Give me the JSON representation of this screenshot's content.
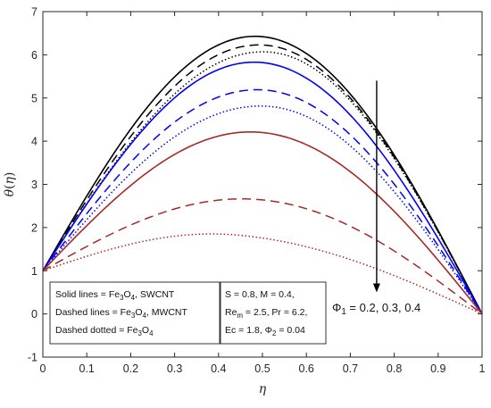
{
  "chart_data": {
    "type": "line",
    "xlabel": "η",
    "ylabel_parts": [
      "θ",
      "(",
      "η",
      ")"
    ],
    "xlim": [
      0,
      1
    ],
    "ylim": [
      -1,
      7
    ],
    "xticks": [
      0,
      0.1,
      0.2,
      0.3,
      0.4,
      0.5,
      0.6,
      0.7,
      0.8,
      0.9,
      1
    ],
    "xtick_labels": [
      "0",
      "0.1",
      "0.2",
      "0.3",
      "0.4",
      "0.5",
      "0.6",
      "0.7",
      "0.8",
      "0.9",
      "1"
    ],
    "yticks": [
      -1,
      0,
      1,
      2,
      3,
      4,
      5,
      6,
      7
    ],
    "ytick_labels": [
      "-1",
      "0",
      "1",
      "2",
      "3",
      "4",
      "5",
      "6",
      "7"
    ],
    "grid": false,
    "series": [
      {
        "color": "#000000",
        "style": "solid",
        "ends": [
          1.0,
          0.0
        ],
        "peak_x": 0.5,
        "peak_y": 6.42
      },
      {
        "color": "#000000",
        "style": "dashed",
        "ends": [
          1.0,
          0.0
        ],
        "peak_x": 0.51,
        "peak_y": 6.22
      },
      {
        "color": "#000000",
        "style": "dotted",
        "ends": [
          1.0,
          0.0
        ],
        "peak_x": 0.52,
        "peak_y": 6.06
      },
      {
        "color": "#0000ff",
        "style": "solid",
        "ends": [
          1.0,
          0.0
        ],
        "peak_x": 0.5,
        "peak_y": 5.82
      },
      {
        "color": "#0000ff",
        "style": "dashed",
        "ends": [
          1.0,
          0.0
        ],
        "peak_x": 0.51,
        "peak_y": 5.18
      },
      {
        "color": "#0000ff",
        "style": "dotted",
        "ends": [
          1.0,
          0.0
        ],
        "peak_x": 0.52,
        "peak_y": 4.8
      },
      {
        "color": "#a52a2a",
        "style": "solid",
        "ends": [
          1.0,
          0.0
        ],
        "peak_x": 0.5,
        "peak_y": 4.2
      },
      {
        "color": "#a52a2a",
        "style": "dashed",
        "ends": [
          1.0,
          0.0
        ],
        "peak_x": 0.5,
        "peak_y": 2.64
      },
      {
        "color": "#a52a2a",
        "style": "dotted",
        "ends": [
          1.0,
          0.0
        ],
        "peak_x": 0.45,
        "peak_y": 1.82
      }
    ],
    "legend_box": {
      "lines": [
        {
          "parts": [
            {
              "t": "Solid lines = Fe"
            },
            {
              "t": "3",
              "sub": true
            },
            {
              "t": "O"
            },
            {
              "t": "4",
              "sub": true
            },
            {
              "t": ", SWCNT"
            }
          ]
        },
        {
          "parts": [
            {
              "t": "Dashed lines = Fe"
            },
            {
              "t": "3",
              "sub": true
            },
            {
              "t": "O"
            },
            {
              "t": "4",
              "sub": true
            },
            {
              "t": ", MWCNT"
            }
          ]
        },
        {
          "parts": [
            {
              "t": "Dashed dotted = Fe"
            },
            {
              "t": "3",
              "sub": true
            },
            {
              "t": "O"
            },
            {
              "t": "4",
              "sub": true
            }
          ]
        }
      ]
    },
    "params_box": {
      "lines": [
        {
          "parts": [
            {
              "t": "S = 0.8, M = 0.4,"
            }
          ]
        },
        {
          "parts": [
            {
              "t": "Re"
            },
            {
              "t": "m",
              "sub": true
            },
            {
              "t": " = 2.5, Pr = 6.2,"
            }
          ]
        },
        {
          "parts": [
            {
              "t": "Ec = 1.8, Φ"
            },
            {
              "t": "2",
              "sub": true
            },
            {
              "t": " = 0.04"
            }
          ]
        }
      ]
    },
    "annotation": {
      "parts": [
        {
          "t": "Φ"
        },
        {
          "t": "1",
          "sub": true
        },
        {
          "t": " = 0.2, 0.3, 0.4"
        }
      ],
      "arrow_x": 0.76,
      "arrow_from_y": 5.4,
      "arrow_to_y": 0.5
    }
  }
}
